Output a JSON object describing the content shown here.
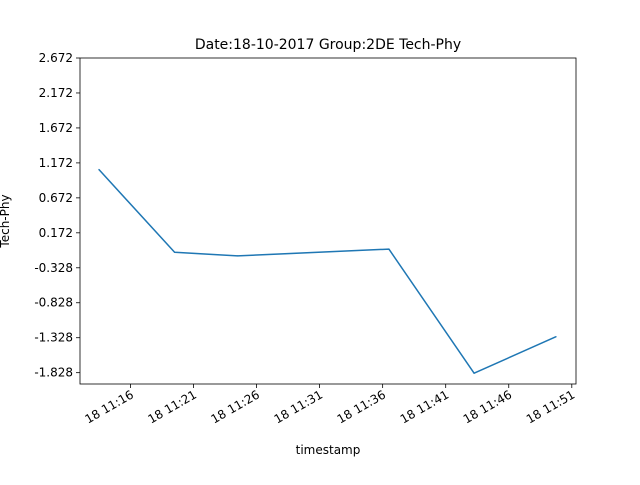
{
  "chart_data": {
    "type": "line",
    "title": "Date:18-10-2017 Group:2DE Tech-Phy",
    "xlabel": "timestamp",
    "ylabel": "Tech-Phy",
    "x": [
      "2017-10-18 11:13:30",
      "2017-10-18 11:19:30",
      "2017-10-18 11:24:30",
      "2017-10-18 11:36:30",
      "2017-10-18 11:43:15",
      "2017-10-18 11:49:45"
    ],
    "series": [
      {
        "values": [
          1.078,
          -0.106,
          -0.158,
          -0.061,
          -1.835,
          -1.314
        ],
        "color": "#1f77b4"
      }
    ],
    "xlim": [
      "2017-10-18 11:12:00",
      "2017-10-18 11:51:20"
    ],
    "ylim": [
      -1.99,
      2.672
    ],
    "x_ticks": [
      {
        "t": "2017-10-18 11:16:00",
        "label": "18 11:16"
      },
      {
        "t": "2017-10-18 11:21:00",
        "label": "18 11:21"
      },
      {
        "t": "2017-10-18 11:26:00",
        "label": "18 11:26"
      },
      {
        "t": "2017-10-18 11:31:00",
        "label": "18 11:31"
      },
      {
        "t": "2017-10-18 11:36:00",
        "label": "18 11:36"
      },
      {
        "t": "2017-10-18 11:41:00",
        "label": "18 11:41"
      },
      {
        "t": "2017-10-18 11:46:00",
        "label": "18 11:46"
      },
      {
        "t": "2017-10-18 11:51:00",
        "label": "18 11:51"
      }
    ],
    "y_ticks": [
      2.672,
      2.172,
      1.672,
      1.172,
      0.672,
      0.172,
      -0.328,
      -0.828,
      -1.328,
      -1.828
    ],
    "y_tick_labels": [
      "2.672",
      "2.172",
      "1.672",
      "1.172",
      "0.672",
      "0.172",
      "-0.328",
      "-0.828",
      "-1.328",
      "-1.828"
    ],
    "grid": false,
    "legend": "none"
  }
}
